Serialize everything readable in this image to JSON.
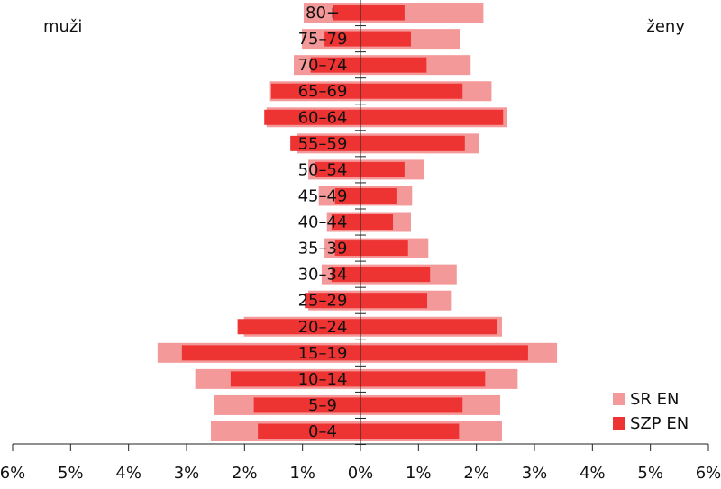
{
  "chart_data": {
    "type": "pyramid",
    "left_label": "muži",
    "right_label": "ženy",
    "categories": [
      "0–4",
      "5–9",
      "10–14",
      "15–19",
      "20–24",
      "25–29",
      "30–34",
      "35–39",
      "40–44",
      "45–49",
      "50–54",
      "55–59",
      "60–64",
      "65–69",
      "70–74",
      "75–79",
      "80+"
    ],
    "series": [
      {
        "name": "SR EN",
        "color": "#f4999a",
        "men": [
          2.58,
          2.52,
          2.85,
          3.5,
          2.01,
          0.9,
          0.67,
          0.62,
          0.58,
          0.72,
          0.9,
          1.09,
          1.62,
          1.56,
          1.15,
          1.01,
          0.98
        ],
        "women": [
          2.44,
          2.41,
          2.71,
          3.39,
          2.44,
          1.56,
          1.66,
          1.17,
          0.87,
          0.89,
          1.09,
          2.05,
          2.52,
          2.26,
          1.9,
          1.71,
          2.12
        ]
      },
      {
        "name": "SZP EN",
        "color": "#ee3333",
        "men": [
          1.77,
          1.84,
          2.24,
          3.08,
          2.12,
          0.96,
          0.5,
          0.44,
          0.5,
          0.44,
          0.78,
          1.21,
          1.66,
          1.54,
          0.86,
          0.62,
          0.47
        ],
        "women": [
          1.7,
          1.76,
          2.15,
          2.89,
          2.36,
          1.15,
          1.2,
          0.82,
          0.56,
          0.62,
          0.76,
          1.8,
          2.46,
          1.76,
          1.14,
          0.87,
          0.76
        ]
      }
    ],
    "xlim": [
      -6,
      6
    ],
    "xticks": [
      {
        "value": -6,
        "label": "6%"
      },
      {
        "value": -5,
        "label": "5%"
      },
      {
        "value": -4,
        "label": "4%"
      },
      {
        "value": -3,
        "label": "3%"
      },
      {
        "value": -2,
        "label": "2%"
      },
      {
        "value": -1,
        "label": "1%"
      },
      {
        "value": 0,
        "label": "0%"
      },
      {
        "value": 1,
        "label": "1%"
      },
      {
        "value": 2,
        "label": "2%"
      },
      {
        "value": 3,
        "label": "3%"
      },
      {
        "value": 4,
        "label": "4%"
      },
      {
        "value": 5,
        "label": "5%"
      },
      {
        "value": 6,
        "label": "6%"
      }
    ],
    "legend": "bottom-right"
  }
}
